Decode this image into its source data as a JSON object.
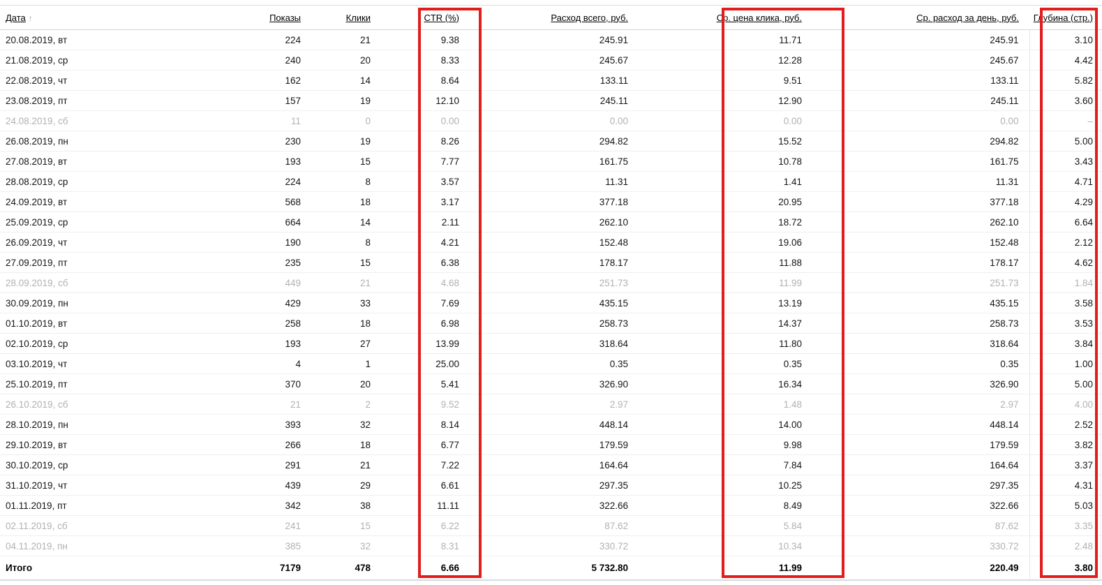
{
  "report": {
    "table": {
      "sort_icon": "↑",
      "columns": [
        {
          "key": "date",
          "label": "Дата",
          "align": "left",
          "sorted": "asc",
          "highlighted": false
        },
        {
          "key": "impressions",
          "label": "Показы",
          "highlighted": false
        },
        {
          "key": "clicks",
          "label": "Клики",
          "highlighted": false
        },
        {
          "key": "ctr",
          "label": "CTR (%)",
          "highlighted": true
        },
        {
          "key": "cost_total",
          "label": "Расход всего, руб.",
          "highlighted": false
        },
        {
          "key": "avg_cpc",
          "label": "Ср. цена клика, руб.",
          "highlighted": true
        },
        {
          "key": "avg_cost_per_day",
          "label": "Ср. расход за день, руб.",
          "highlighted": false
        },
        {
          "key": "depth",
          "label": "Глубина (стр.)",
          "highlighted": true
        }
      ],
      "rows": [
        {
          "muted": false,
          "cells": [
            "20.08.2019, вт",
            "224",
            "21",
            "9.38",
            "245.91",
            "11.71",
            "245.91",
            "3.10"
          ]
        },
        {
          "muted": false,
          "cells": [
            "21.08.2019, ср",
            "240",
            "20",
            "8.33",
            "245.67",
            "12.28",
            "245.67",
            "4.42"
          ]
        },
        {
          "muted": false,
          "cells": [
            "22.08.2019, чт",
            "162",
            "14",
            "8.64",
            "133.11",
            "9.51",
            "133.11",
            "5.82"
          ]
        },
        {
          "muted": false,
          "cells": [
            "23.08.2019, пт",
            "157",
            "19",
            "12.10",
            "245.11",
            "12.90",
            "245.11",
            "3.60"
          ]
        },
        {
          "muted": true,
          "cells": [
            "24.08.2019, сб",
            "11",
            "0",
            "0.00",
            "0.00",
            "0.00",
            "0.00",
            "–"
          ]
        },
        {
          "muted": false,
          "cells": [
            "26.08.2019, пн",
            "230",
            "19",
            "8.26",
            "294.82",
            "15.52",
            "294.82",
            "5.00"
          ]
        },
        {
          "muted": false,
          "cells": [
            "27.08.2019, вт",
            "193",
            "15",
            "7.77",
            "161.75",
            "10.78",
            "161.75",
            "3.43"
          ]
        },
        {
          "muted": false,
          "cells": [
            "28.08.2019, ср",
            "224",
            "8",
            "3.57",
            "11.31",
            "1.41",
            "11.31",
            "4.71"
          ]
        },
        {
          "muted": false,
          "cells": [
            "24.09.2019, вт",
            "568",
            "18",
            "3.17",
            "377.18",
            "20.95",
            "377.18",
            "4.29"
          ]
        },
        {
          "muted": false,
          "cells": [
            "25.09.2019, ср",
            "664",
            "14",
            "2.11",
            "262.10",
            "18.72",
            "262.10",
            "6.64"
          ]
        },
        {
          "muted": false,
          "cells": [
            "26.09.2019, чт",
            "190",
            "8",
            "4.21",
            "152.48",
            "19.06",
            "152.48",
            "2.12"
          ]
        },
        {
          "muted": false,
          "cells": [
            "27.09.2019, пт",
            "235",
            "15",
            "6.38",
            "178.17",
            "11.88",
            "178.17",
            "4.62"
          ]
        },
        {
          "muted": true,
          "cells": [
            "28.09.2019, сб",
            "449",
            "21",
            "4.68",
            "251.73",
            "11.99",
            "251.73",
            "1.84"
          ]
        },
        {
          "muted": false,
          "cells": [
            "30.09.2019, пн",
            "429",
            "33",
            "7.69",
            "435.15",
            "13.19",
            "435.15",
            "3.58"
          ]
        },
        {
          "muted": false,
          "cells": [
            "01.10.2019, вт",
            "258",
            "18",
            "6.98",
            "258.73",
            "14.37",
            "258.73",
            "3.53"
          ]
        },
        {
          "muted": false,
          "cells": [
            "02.10.2019, ср",
            "193",
            "27",
            "13.99",
            "318.64",
            "11.80",
            "318.64",
            "3.84"
          ]
        },
        {
          "muted": false,
          "cells": [
            "03.10.2019, чт",
            "4",
            "1",
            "25.00",
            "0.35",
            "0.35",
            "0.35",
            "1.00"
          ]
        },
        {
          "muted": false,
          "cells": [
            "25.10.2019, пт",
            "370",
            "20",
            "5.41",
            "326.90",
            "16.34",
            "326.90",
            "5.00"
          ]
        },
        {
          "muted": true,
          "cells": [
            "26.10.2019, сб",
            "21",
            "2",
            "9.52",
            "2.97",
            "1.48",
            "2.97",
            "4.00"
          ]
        },
        {
          "muted": false,
          "cells": [
            "28.10.2019, пн",
            "393",
            "32",
            "8.14",
            "448.14",
            "14.00",
            "448.14",
            "2.52"
          ]
        },
        {
          "muted": false,
          "cells": [
            "29.10.2019, вт",
            "266",
            "18",
            "6.77",
            "179.59",
            "9.98",
            "179.59",
            "3.82"
          ]
        },
        {
          "muted": false,
          "cells": [
            "30.10.2019, ср",
            "291",
            "21",
            "7.22",
            "164.64",
            "7.84",
            "164.64",
            "3.37"
          ]
        },
        {
          "muted": false,
          "cells": [
            "31.10.2019, чт",
            "439",
            "29",
            "6.61",
            "297.35",
            "10.25",
            "297.35",
            "4.31"
          ]
        },
        {
          "muted": false,
          "cells": [
            "01.11.2019, пт",
            "342",
            "38",
            "11.11",
            "322.66",
            "8.49",
            "322.66",
            "5.03"
          ]
        },
        {
          "muted": true,
          "cells": [
            "02.11.2019, сб",
            "241",
            "15",
            "6.22",
            "87.62",
            "5.84",
            "87.62",
            "3.35"
          ]
        },
        {
          "muted": true,
          "cells": [
            "04.11.2019, пн",
            "385",
            "32",
            "8.31",
            "330.72",
            "10.34",
            "330.72",
            "2.48"
          ]
        }
      ],
      "totals": {
        "label": "Итого",
        "cells": [
          "7179",
          "478",
          "6.66",
          "5 732.80",
          "11.99",
          "220.49",
          "3.80"
        ]
      }
    },
    "colors": {
      "highlight_border": "#e11d1d",
      "muted_text": "#b1b1b1",
      "text": "#141414"
    }
  }
}
